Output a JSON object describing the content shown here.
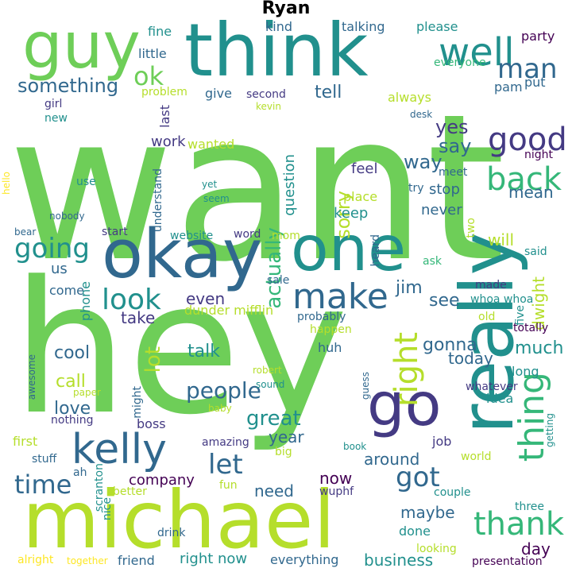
{
  "title": "Ryan",
  "palette": [
    "#440154",
    "#443a83",
    "#31688e",
    "#21908d",
    "#35b779",
    "#6ece58",
    "#b5de2b",
    "#fde725"
  ],
  "words": [
    {
      "text": "want",
      "color": "#6ece58"
    },
    {
      "text": "hey",
      "color": "#6ece58"
    },
    {
      "text": "think",
      "color": "#21908d"
    },
    {
      "text": "okay",
      "color": "#31688e"
    },
    {
      "text": "one",
      "color": "#21908d"
    },
    {
      "text": "michael",
      "color": "#b5de2b"
    },
    {
      "text": "really",
      "color": "#21908d"
    },
    {
      "text": "guy",
      "color": "#6ece58"
    },
    {
      "text": "go",
      "color": "#443a83"
    },
    {
      "text": "kelly",
      "color": "#31688e"
    },
    {
      "text": "well",
      "color": "#21908d"
    },
    {
      "text": "make",
      "color": "#31688e"
    },
    {
      "text": "thing",
      "color": "#35b779"
    },
    {
      "text": "thank",
      "color": "#35b779"
    },
    {
      "text": "right",
      "color": "#b5de2b"
    },
    {
      "text": "good",
      "color": "#443a83"
    },
    {
      "text": "back",
      "color": "#35b779"
    },
    {
      "text": "look",
      "color": "#21908d"
    },
    {
      "text": "going",
      "color": "#21908d"
    },
    {
      "text": "time",
      "color": "#31688e"
    },
    {
      "text": "got",
      "color": "#31688e"
    },
    {
      "text": "let",
      "color": "#31688e"
    },
    {
      "text": "man",
      "color": "#31688e"
    },
    {
      "text": "ok",
      "color": "#6ece58"
    },
    {
      "text": "people",
      "color": "#31688e"
    },
    {
      "text": "great",
      "color": "#21908d"
    },
    {
      "text": "something",
      "color": "#31688e"
    },
    {
      "text": "lot",
      "color": "#b5de2b"
    },
    {
      "text": "actually",
      "color": "#35b779"
    },
    {
      "text": "yes",
      "color": "#443a83"
    },
    {
      "text": "say",
      "color": "#31688e"
    },
    {
      "text": "way",
      "color": "#31688e"
    },
    {
      "text": "sorry",
      "color": "#b5de2b"
    },
    {
      "text": "mean",
      "color": "#31688e"
    },
    {
      "text": "gonna",
      "color": "#31688e"
    },
    {
      "text": "much",
      "color": "#21908d"
    },
    {
      "text": "love",
      "color": "#31688e"
    },
    {
      "text": "cool",
      "color": "#31688e"
    },
    {
      "text": "call",
      "color": "#b5de2b"
    },
    {
      "text": "see",
      "color": "#31688e"
    },
    {
      "text": "jim",
      "color": "#31688e"
    },
    {
      "text": "dwight",
      "color": "#b5de2b"
    },
    {
      "text": "will",
      "color": "#b5de2b"
    },
    {
      "text": "tell",
      "color": "#31688e"
    },
    {
      "text": "talk",
      "color": "#21908d"
    },
    {
      "text": "take",
      "color": "#443a83"
    },
    {
      "text": "now",
      "color": "#440154"
    },
    {
      "text": "need",
      "color": "#31688e"
    },
    {
      "text": "maybe",
      "color": "#31688e"
    },
    {
      "text": "year",
      "color": "#31688e"
    },
    {
      "text": "company",
      "color": "#440154"
    },
    {
      "text": "business",
      "color": "#21908d"
    },
    {
      "text": "around",
      "color": "#31688e"
    },
    {
      "text": "today",
      "color": "#31688e"
    },
    {
      "text": "day",
      "color": "#440154"
    },
    {
      "text": "even",
      "color": "#443a83"
    },
    {
      "text": "question",
      "color": "#21908d"
    },
    {
      "text": "work",
      "color": "#443a83"
    },
    {
      "text": "keep",
      "color": "#21908d"
    },
    {
      "text": "never",
      "color": "#31688e"
    },
    {
      "text": "stop",
      "color": "#31688e"
    },
    {
      "text": "feel",
      "color": "#443a83"
    },
    {
      "text": "place",
      "color": "#b5de2b"
    },
    {
      "text": "come",
      "color": "#31688e"
    },
    {
      "text": "us",
      "color": "#31688e"
    },
    {
      "text": "right now",
      "color": "#21908d"
    },
    {
      "text": "everything",
      "color": "#31688e"
    },
    {
      "text": "friend",
      "color": "#31688e"
    },
    {
      "text": "done",
      "color": "#21908d"
    },
    {
      "text": "job",
      "color": "#443a83"
    },
    {
      "text": "idea",
      "color": "#21908d"
    },
    {
      "text": "long",
      "color": "#21908d"
    },
    {
      "text": "huh",
      "color": "#31688e"
    },
    {
      "text": "little",
      "color": "#31688e"
    },
    {
      "text": "please",
      "color": "#21908d"
    },
    {
      "text": "talking",
      "color": "#31688e"
    },
    {
      "text": "kind",
      "color": "#31688e"
    },
    {
      "text": "fine",
      "color": "#21908d"
    },
    {
      "text": "party",
      "color": "#440154"
    },
    {
      "text": "everyone",
      "color": "#35b779"
    },
    {
      "text": "pam",
      "color": "#31688e"
    },
    {
      "text": "put",
      "color": "#31688e"
    },
    {
      "text": "always",
      "color": "#b5de2b"
    },
    {
      "text": "give",
      "color": "#31688e"
    },
    {
      "text": "second",
      "color": "#443a83"
    },
    {
      "text": "kevin",
      "color": "#b5de2b"
    },
    {
      "text": "problem",
      "color": "#b5de2b"
    },
    {
      "text": "girl",
      "color": "#443a83"
    },
    {
      "text": "new",
      "color": "#21908d"
    },
    {
      "text": "last",
      "color": "#443a83"
    },
    {
      "text": "wanted",
      "color": "#b5de2b"
    },
    {
      "text": "understand",
      "color": "#31688e"
    },
    {
      "text": "use",
      "color": "#21908d"
    },
    {
      "text": "hello",
      "color": "#fde725"
    },
    {
      "text": "yet",
      "color": "#21908d"
    },
    {
      "text": "seem",
      "color": "#21908d"
    },
    {
      "text": "nobody",
      "color": "#31688e"
    },
    {
      "text": "bear",
      "color": "#31688e"
    },
    {
      "text": "start",
      "color": "#443a83"
    },
    {
      "text": "website",
      "color": "#21908d"
    },
    {
      "text": "word",
      "color": "#443a83"
    },
    {
      "text": "mom",
      "color": "#b5de2b"
    },
    {
      "text": "heard",
      "color": "#31688e"
    },
    {
      "text": "two",
      "color": "#b5de2b"
    },
    {
      "text": "ask",
      "color": "#35b779"
    },
    {
      "text": "said",
      "color": "#21908d"
    },
    {
      "text": "made",
      "color": "#443a83"
    },
    {
      "text": "whoa whoa",
      "color": "#21908d"
    },
    {
      "text": "old",
      "color": "#b5de2b"
    },
    {
      "text": "five",
      "color": "#21908d"
    },
    {
      "text": "totally",
      "color": "#440154"
    },
    {
      "text": "desk",
      "color": "#31688e"
    },
    {
      "text": "night",
      "color": "#440154"
    },
    {
      "text": "meet",
      "color": "#31688e"
    },
    {
      "text": "try",
      "color": "#31688e"
    },
    {
      "text": "phone",
      "color": "#21908d"
    },
    {
      "text": "sale",
      "color": "#31688e"
    },
    {
      "text": "dunder mifflin",
      "color": "#b5de2b"
    },
    {
      "text": "probably",
      "color": "#31688e"
    },
    {
      "text": "happen",
      "color": "#b5de2b"
    },
    {
      "text": "awesome",
      "color": "#31688e"
    },
    {
      "text": "robert",
      "color": "#b5de2b"
    },
    {
      "text": "guess",
      "color": "#31688e"
    },
    {
      "text": "whatever",
      "color": "#443a83"
    },
    {
      "text": "paper",
      "color": "#b5de2b"
    },
    {
      "text": "might",
      "color": "#31688e"
    },
    {
      "text": "sound",
      "color": "#21908d"
    },
    {
      "text": "baby",
      "color": "#b5de2b"
    },
    {
      "text": "nothing",
      "color": "#443a83"
    },
    {
      "text": "boss",
      "color": "#443a83"
    },
    {
      "text": "getting",
      "color": "#21908d"
    },
    {
      "text": "first",
      "color": "#b5de2b"
    },
    {
      "text": "amazing",
      "color": "#443a83"
    },
    {
      "text": "big",
      "color": "#b5de2b"
    },
    {
      "text": "book",
      "color": "#21908d"
    },
    {
      "text": "world",
      "color": "#b5de2b"
    },
    {
      "text": "stuff",
      "color": "#31688e"
    },
    {
      "text": "scranton",
      "color": "#21908d"
    },
    {
      "text": "ah",
      "color": "#31688e"
    },
    {
      "text": "fun",
      "color": "#b5de2b"
    },
    {
      "text": "wuphf",
      "color": "#443a83"
    },
    {
      "text": "better",
      "color": "#b5de2b"
    },
    {
      "text": "couple",
      "color": "#21908d"
    },
    {
      "text": "three",
      "color": "#21908d"
    },
    {
      "text": "nice",
      "color": "#21908d"
    },
    {
      "text": "drink",
      "color": "#31688e"
    },
    {
      "text": "looking",
      "color": "#b5de2b"
    },
    {
      "text": "alright",
      "color": "#fde725"
    },
    {
      "text": "together",
      "color": "#fde725"
    },
    {
      "text": "presentation",
      "color": "#440154"
    }
  ]
}
